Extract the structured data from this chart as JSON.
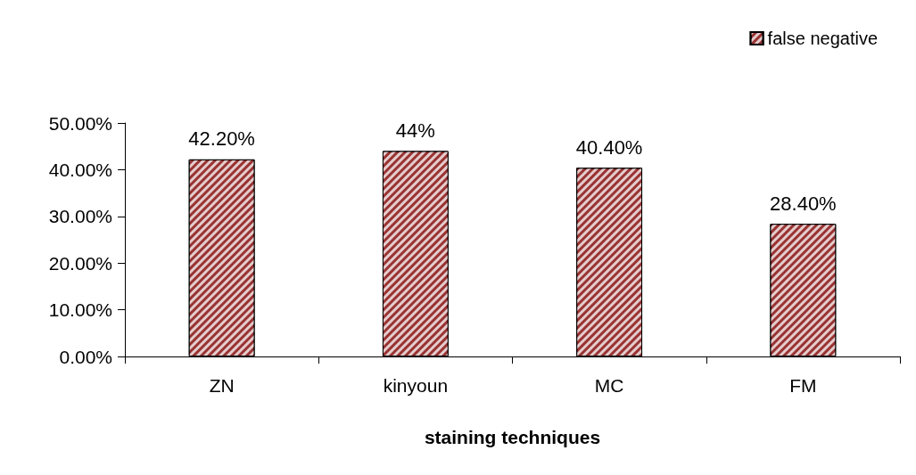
{
  "chart_data": {
    "type": "bar",
    "xlabel": "staining techniques",
    "categories": [
      "ZN",
      "kinyoun",
      "MC",
      "FM"
    ],
    "series": [
      {
        "name": "false negative",
        "color": "#993333",
        "values": [
          42.2,
          44,
          40.4,
          28.4
        ],
        "value_labels": [
          "42.20%",
          "44%",
          "40.40%",
          "28.40%"
        ]
      }
    ],
    "ylim": [
      0,
      50
    ],
    "yticks": [
      {
        "value": 0,
        "label": "0.00%"
      },
      {
        "value": 10,
        "label": "10.00%"
      },
      {
        "value": 20,
        "label": "20.00%"
      },
      {
        "value": 30,
        "label": "30.00%"
      },
      {
        "value": 40,
        "label": "40.00%"
      },
      {
        "value": 50,
        "label": "50.00%"
      }
    ],
    "legend": "top right",
    "grid": false
  }
}
